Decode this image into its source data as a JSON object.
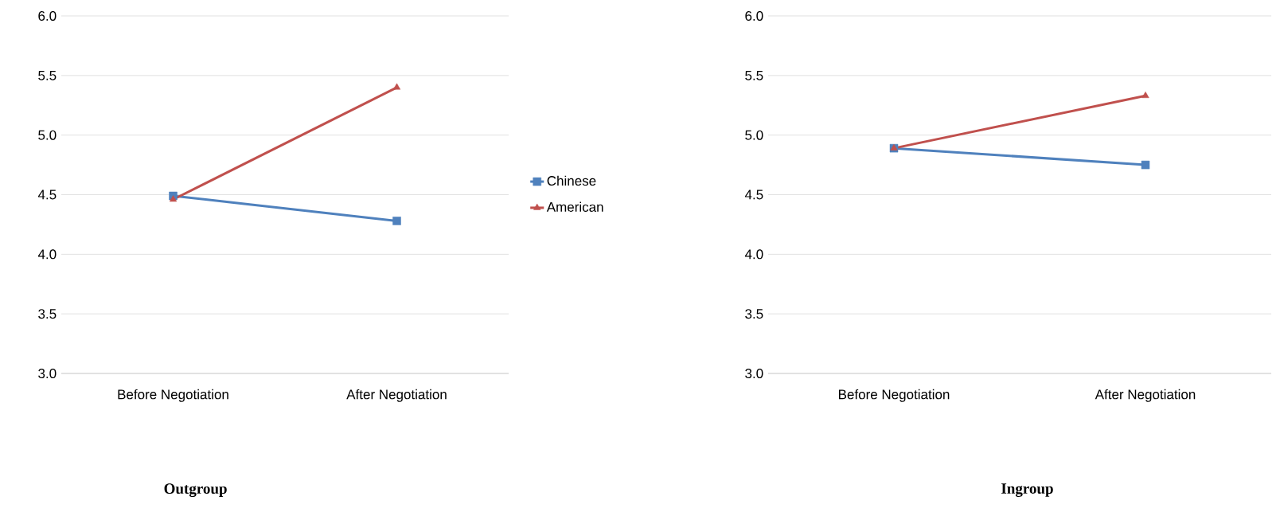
{
  "chart_data": [
    {
      "type": "line",
      "title": "Outgroup",
      "categories": [
        "Before Negotiation",
        "After Negotiation"
      ],
      "series": [
        {
          "name": "Chinese",
          "color": "#4f81bd",
          "marker": "square",
          "values": [
            4.49,
            4.28
          ]
        },
        {
          "name": "American",
          "color": "#c0504d",
          "marker": "triangle",
          "values": [
            4.46,
            5.4
          ]
        }
      ],
      "ylim": [
        3.0,
        6.0
      ],
      "yticks": [
        {
          "value": 3.0,
          "label": "3.0"
        },
        {
          "value": 3.5,
          "label": "3.5"
        },
        {
          "value": 4.0,
          "label": "4.0"
        },
        {
          "value": 4.5,
          "label": "4.5"
        },
        {
          "value": 5.0,
          "label": "5.0"
        },
        {
          "value": 5.5,
          "label": "5.5"
        },
        {
          "value": 6.0,
          "label": "6.0"
        }
      ],
      "grid": "y",
      "legend": "right"
    },
    {
      "type": "line",
      "title": "Ingroup",
      "categories": [
        "Before Negotiation",
        "After Negotiation"
      ],
      "series": [
        {
          "color": "#4f81bd",
          "marker": "square",
          "values": [
            4.89,
            4.75
          ]
        },
        {
          "color": "#c0504d",
          "marker": "triangle",
          "values": [
            4.89,
            5.33
          ]
        }
      ],
      "ylim": [
        3.0,
        6.0
      ],
      "yticks": [
        {
          "value": 3.0,
          "label": "3.0"
        },
        {
          "value": 3.5,
          "label": "3.5"
        },
        {
          "value": 4.0,
          "label": "4.0"
        },
        {
          "value": 4.5,
          "label": "4.5"
        },
        {
          "value": 5.0,
          "label": "5.0"
        },
        {
          "value": 5.5,
          "label": "5.5"
        },
        {
          "value": 6.0,
          "label": "6.0"
        }
      ],
      "grid": "y"
    }
  ]
}
